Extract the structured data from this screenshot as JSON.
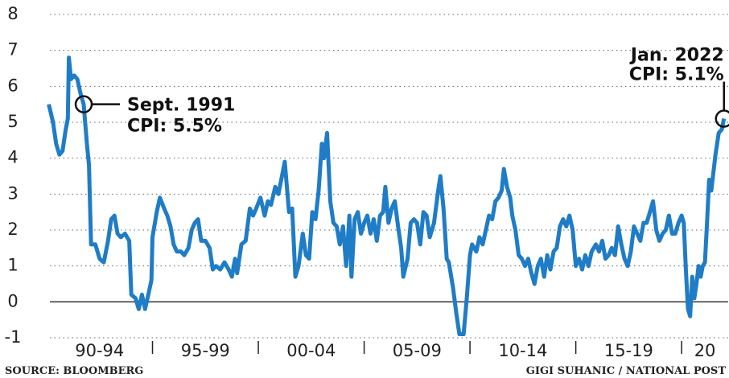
{
  "chart_data": {
    "type": "line",
    "series": [
      {
        "name": "CPI",
        "color": "#1f7cc7",
        "x": [
          1990.1,
          1990.3,
          1990.45,
          1990.6,
          1990.75,
          1990.9,
          1991.0,
          1991.05,
          1991.15,
          1991.3,
          1991.45,
          1991.6,
          1991.75,
          1991.9,
          1992.0,
          1992.1,
          1992.3,
          1992.5,
          1992.7,
          1992.9,
          1993.05,
          1993.2,
          1993.35,
          1993.5,
          1993.7,
          1993.9,
          1994.0,
          1994.2,
          1994.35,
          1994.5,
          1994.65,
          1994.8,
          1994.95,
          1995.0,
          1995.2,
          1995.35,
          1995.55,
          1995.7,
          1995.85,
          1996.0,
          1996.15,
          1996.35,
          1996.5,
          1996.7,
          1996.85,
          1997.0,
          1997.15,
          1997.3,
          1997.5,
          1997.7,
          1997.85,
          1998.0,
          1998.2,
          1998.4,
          1998.6,
          1998.75,
          1998.9,
          1999.0,
          1999.2,
          1999.4,
          1999.6,
          1999.75,
          1999.9,
          2000.1,
          2000.3,
          2000.45,
          2000.6,
          2000.8,
          2000.95,
          2001.15,
          2001.25,
          2001.45,
          2001.6,
          2001.75,
          2001.9,
          2002.1,
          2002.25,
          2002.4,
          2002.55,
          2002.7,
          2002.85,
          2003.0,
          2003.1,
          2003.25,
          2003.4,
          2003.55,
          2003.7,
          2003.85,
          2004.0,
          2004.15,
          2004.3,
          2004.4,
          2004.55,
          2004.7,
          2004.85,
          2005.0,
          2005.15,
          2005.3,
          2005.45,
          2005.6,
          2005.75,
          2005.9,
          2006.0,
          2006.15,
          2006.3,
          2006.45,
          2006.6,
          2006.75,
          2006.85,
          2007.05,
          2007.2,
          2007.35,
          2007.5,
          2007.65,
          2007.8,
          2007.95,
          2008.1,
          2008.3,
          2008.5,
          2008.6,
          2008.75,
          2008.9,
          2009.0,
          2009.2,
          2009.35,
          2009.5,
          2009.7,
          2009.85,
          2010.0,
          2010.1,
          2010.3,
          2010.45,
          2010.6,
          2010.75,
          2010.9,
          2011.05,
          2011.2,
          2011.35,
          2011.5,
          2011.6,
          2011.75,
          2011.9,
          2012.0,
          2012.15,
          2012.3,
          2012.45,
          2012.6,
          2012.75,
          2012.9,
          2013.05,
          2013.2,
          2013.35,
          2013.5,
          2013.65,
          2013.8,
          2013.95,
          2014.1,
          2014.25,
          2014.4,
          2014.55,
          2014.7,
          2014.85,
          2015.0,
          2015.15,
          2015.3,
          2015.45,
          2015.6,
          2015.75,
          2015.95,
          2016.1,
          2016.25,
          2016.4,
          2016.55,
          2016.7,
          2016.85,
          2017.0,
          2017.15,
          2017.3,
          2017.45,
          2017.6,
          2017.75,
          2017.9,
          2018.05,
          2018.2,
          2018.35,
          2018.5,
          2018.65,
          2018.8,
          2018.95,
          2019.1,
          2019.25,
          2019.4,
          2019.55,
          2019.7,
          2019.85,
          2020.0,
          2020.1,
          2020.2,
          2020.3,
          2020.4,
          2020.5,
          2020.6,
          2020.7,
          2020.8,
          2020.9,
          2021.0,
          2021.1,
          2021.2,
          2021.3,
          2021.4,
          2021.5,
          2021.6,
          2021.75,
          2021.9,
          2022.0
        ],
        "values": [
          5.5,
          5.0,
          4.4,
          4.1,
          4.2,
          4.8,
          5.1,
          6.8,
          6.2,
          6.3,
          6.2,
          5.8,
          5.5,
          4.4,
          3.8,
          1.6,
          1.6,
          1.2,
          1.1,
          1.7,
          2.3,
          2.4,
          1.9,
          1.8,
          1.9,
          1.7,
          0.2,
          0.1,
          -0.2,
          0.2,
          -0.2,
          0.2,
          0.6,
          1.8,
          2.5,
          2.9,
          2.6,
          2.4,
          2.1,
          1.6,
          1.4,
          1.4,
          1.3,
          1.5,
          2.0,
          2.2,
          2.3,
          1.7,
          1.7,
          1.5,
          0.9,
          1.0,
          0.9,
          1.1,
          0.9,
          0.7,
          1.2,
          0.8,
          1.6,
          1.7,
          2.6,
          2.4,
          2.6,
          2.9,
          2.4,
          2.8,
          2.7,
          3.2,
          3.0,
          3.6,
          3.9,
          2.5,
          2.6,
          0.7,
          1.0,
          1.9,
          1.3,
          1.2,
          2.5,
          2.3,
          3.1,
          4.4,
          4.0,
          4.7,
          2.8,
          2.2,
          2.1,
          1.6,
          2.1,
          1.0,
          2.4,
          0.7,
          2.3,
          2.5,
          1.9,
          2.2,
          2.4,
          1.9,
          2.3,
          1.7,
          2.4,
          2.5,
          3.2,
          2.2,
          2.6,
          2.8,
          2.1,
          1.5,
          0.7,
          1.2,
          2.2,
          2.3,
          2.2,
          1.6,
          2.5,
          2.4,
          1.8,
          2.2,
          3.1,
          3.5,
          2.6,
          1.2,
          1.1,
          0.4,
          -0.3,
          -0.9,
          -0.9,
          0.1,
          1.3,
          1.6,
          1.4,
          1.8,
          1.6,
          2.0,
          2.4,
          2.3,
          2.8,
          2.9,
          3.1,
          3.7,
          3.2,
          2.9,
          2.4,
          2.0,
          1.3,
          1.2,
          1.0,
          1.2,
          0.8,
          0.5,
          1.0,
          1.2,
          0.7,
          1.3,
          0.9,
          1.4,
          1.5,
          2.1,
          2.3,
          2.1,
          2.4,
          2.0,
          1.0,
          1.2,
          0.9,
          1.3,
          1.0,
          1.4,
          1.6,
          1.4,
          1.7,
          1.2,
          1.3,
          1.5,
          1.3,
          2.1,
          1.6,
          1.2,
          1.0,
          1.4,
          2.1,
          1.9,
          1.7,
          2.2,
          2.2,
          2.5,
          2.8,
          2.0,
          1.7,
          1.9,
          2.0,
          2.4,
          1.9,
          1.9,
          2.2,
          2.4,
          2.2,
          0.9,
          -0.2,
          -0.4,
          0.7,
          0.1,
          0.5,
          1.0,
          0.7,
          1.0,
          1.1,
          2.2,
          3.4,
          3.1,
          3.6,
          4.1,
          4.7,
          4.8,
          5.1
        ]
      }
    ],
    "xlim": [
      1990,
      2022.2
    ],
    "xticks": [
      1995,
      2000,
      2005,
      2010,
      2015,
      2020
    ],
    "period_labels": [
      "90-94",
      "95-99",
      "00-04",
      "05-09",
      "10-14",
      "15-19",
      "20"
    ],
    "ylim": [
      -1,
      8
    ],
    "yticks": [
      -1,
      0,
      1,
      2,
      3,
      4,
      5,
      6,
      7,
      8
    ],
    "grid": true,
    "annotations": [
      {
        "lines": [
          "Sept. 1991",
          "CPI: 5.5%"
        ],
        "x": 1991.75,
        "y": 5.5
      },
      {
        "lines": [
          "Jan. 2022",
          "CPI: 5.1%"
        ],
        "x": 2022.0,
        "y": 5.1
      }
    ],
    "source": "SOURCE: BLOOMBERG",
    "credit": "GIGI SUHANIC  / NATIONAL POST"
  }
}
